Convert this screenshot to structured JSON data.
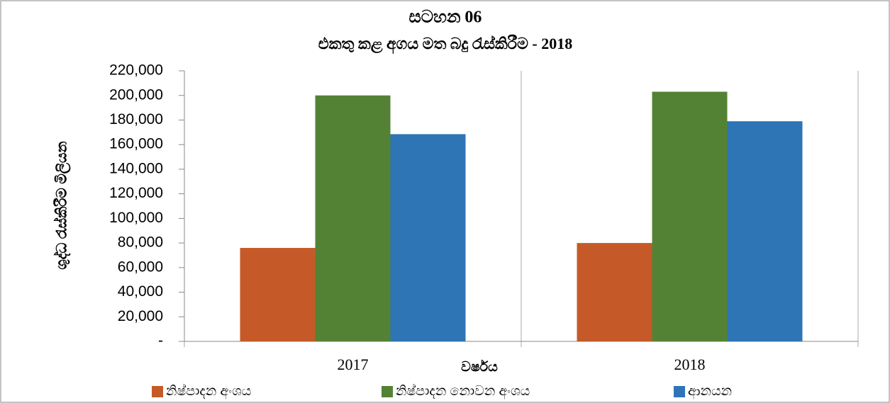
{
  "chart_data": {
    "type": "bar",
    "title": "සටහන 06",
    "subtitle": "එකතු කළ අගය මත බදු රැස්කිරීම - 2018",
    "ylabel": "ශුද්ධ රැස්කිරීම මිලියන",
    "xlabel": "වර්ෂය",
    "categories": [
      "2017",
      "2018"
    ],
    "series": [
      {
        "name": "නිෂ්පාදන අංශය",
        "color": "#c55a28",
        "values": [
          76000,
          80000
        ]
      },
      {
        "name": "නිෂ්පාදන නොවන අංශය",
        "color": "#548235",
        "values": [
          200000,
          203000
        ]
      },
      {
        "name": "ආනයන",
        "color": "#2e75b6",
        "values": [
          168500,
          179000
        ]
      }
    ],
    "ylim": [
      0,
      220000
    ],
    "yticks": [
      {
        "value": 0,
        "label": "-"
      },
      {
        "value": 20000,
        "label": "20,000"
      },
      {
        "value": 40000,
        "label": "40,000"
      },
      {
        "value": 60000,
        "label": "60,000"
      },
      {
        "value": 80000,
        "label": "80,000"
      },
      {
        "value": 100000,
        "label": "100,000"
      },
      {
        "value": 120000,
        "label": "120,000"
      },
      {
        "value": 140000,
        "label": "140,000"
      },
      {
        "value": 160000,
        "label": "160,000"
      },
      {
        "value": 180000,
        "label": "180,000"
      },
      {
        "value": 200000,
        "label": "200,000"
      },
      {
        "value": 220000,
        "label": "220,000"
      }
    ],
    "legend": "bottom"
  }
}
